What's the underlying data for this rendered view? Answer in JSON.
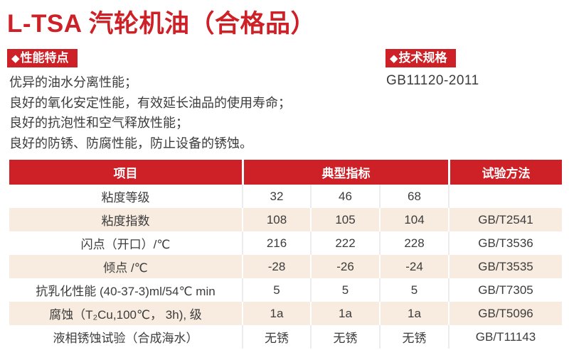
{
  "page": {
    "title": "L-TSA 汽轮机油（合格品）"
  },
  "colors": {
    "accent_red": "#ce2127",
    "row_peach": "#f8ebdf",
    "text_dark": "#3c3c3c"
  },
  "sections": {
    "features": {
      "diamond": "◆",
      "label": "性能特点",
      "items": [
        "优异的油水分离性能；",
        "良好的氧化安定性能，有效延长油品的使用寿命；",
        "良好的抗泡性和空气释放性能；",
        "良好的防锈、防腐性能，防止设备的锈蚀。"
      ]
    },
    "specs": {
      "diamond": "◆",
      "label": "技术规格",
      "standard": "GB11120-2011"
    }
  },
  "table": {
    "headers": {
      "item": "项目",
      "typical": "典型指标",
      "method": "试验方法"
    },
    "rows": [
      {
        "item": "粘度等级",
        "v1": "32",
        "v2": "46",
        "v3": "68",
        "method": ""
      },
      {
        "item": "粘度指数",
        "v1": "108",
        "v2": "105",
        "v3": "104",
        "method": "GB/T2541"
      },
      {
        "item": "闪点（开口）/℃",
        "v1": "216",
        "v2": "222",
        "v3": "228",
        "method": "GB/T3536"
      },
      {
        "item": "倾点 /℃",
        "v1": "-28",
        "v2": "-26",
        "v3": "-24",
        "method": "GB/T3535"
      },
      {
        "item": "抗乳化性能 (40-37-3)ml/54℃ min",
        "v1": "5",
        "v2": "5",
        "v3": "5",
        "method": "GB/T7305"
      },
      {
        "item": "腐蚀（T₂Cu,100℃， 3h), 级",
        "v1": "1a",
        "v2": "1a",
        "v3": "1a",
        "method": "GB/T5096"
      },
      {
        "item": "液相锈蚀试验（合成海水）",
        "v1": "无锈",
        "v2": "无锈",
        "v3": "无锈",
        "method": "GB/T11143"
      }
    ]
  }
}
